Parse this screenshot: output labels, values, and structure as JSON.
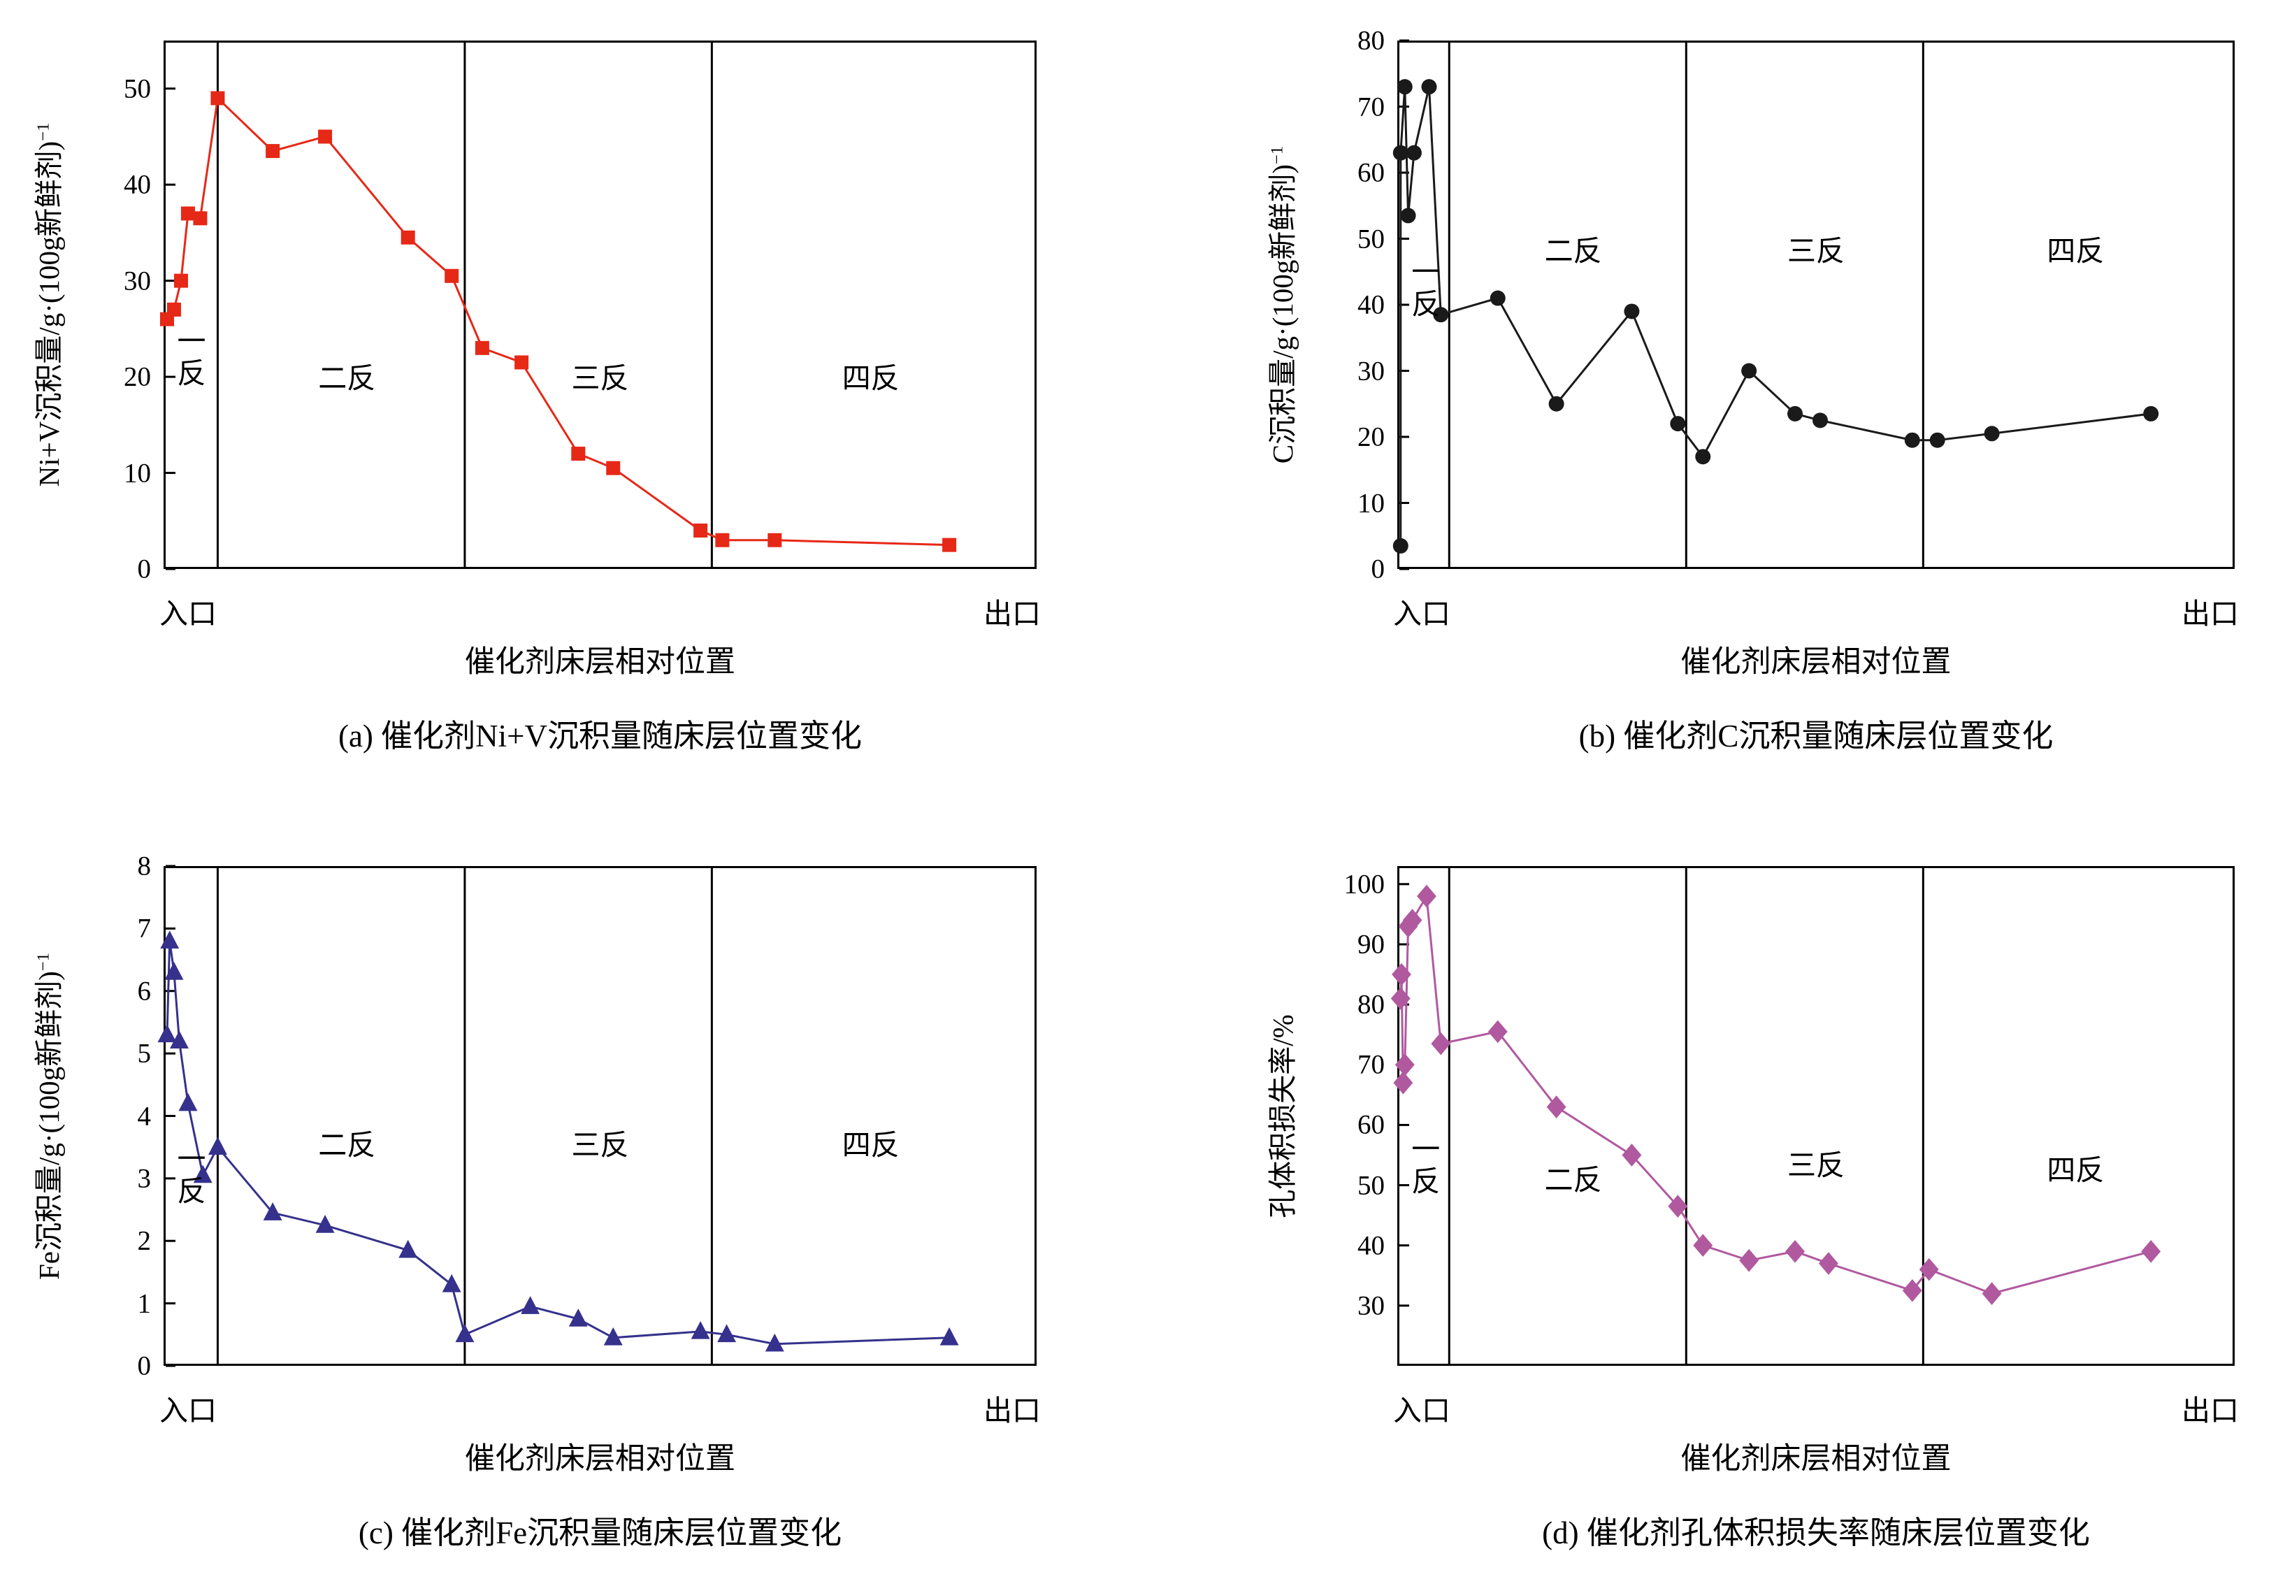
{
  "page": {
    "background": "#ffffff"
  },
  "chart_data": [
    {
      "id": "a",
      "type": "line",
      "caption": "(a) 催化剂Ni+V沉积量随床层位置变化",
      "ylabel": "Ni+V沉积量/g·(100g新鲜剂)",
      "ylabel_superscript": "−1",
      "xlabel": "催化剂床层相对位置",
      "x_left_label": "入口",
      "x_right_label": "出口",
      "line_color": "#e62817",
      "marker": "square",
      "marker_size": 20,
      "grid": false,
      "xlim": [
        0,
        1
      ],
      "ylim": [
        0,
        55
      ],
      "yticks": [
        0,
        10,
        20,
        30,
        40,
        50
      ],
      "reactor_dividers": [
        0.062,
        0.345,
        0.628
      ],
      "reactor_labels": [
        {
          "label": "一反",
          "x": 0.032,
          "y": 0.6,
          "stacked": true
        },
        {
          "label": "二反",
          "x": 0.21,
          "y": 0.64,
          "stacked": false
        },
        {
          "label": "三反",
          "x": 0.5,
          "y": 0.64,
          "stacked": false
        },
        {
          "label": "四反",
          "x": 0.81,
          "y": 0.64,
          "stacked": false
        }
      ],
      "x": [
        0.004,
        0.012,
        0.02,
        0.028,
        0.042,
        0.062,
        0.125,
        0.185,
        0.28,
        0.33,
        0.365,
        0.41,
        0.475,
        0.515,
        0.615,
        0.64,
        0.7,
        0.9
      ],
      "y": [
        26,
        27,
        30,
        37,
        36.5,
        49,
        43.5,
        45,
        34.5,
        30.5,
        23,
        21.5,
        12,
        10.5,
        4,
        3,
        3,
        2.5
      ]
    },
    {
      "id": "b",
      "type": "line",
      "caption": "(b) 催化剂C沉积量随床层位置变化",
      "ylabel": "C沉积量/g·(100g新鲜剂)",
      "ylabel_superscript": "−1",
      "xlabel": "催化剂床层相对位置",
      "x_left_label": "入口",
      "x_right_label": "出口",
      "line_color": "#1a1a1a",
      "marker": "circle",
      "marker_size": 22,
      "grid": false,
      "xlim": [
        0,
        1
      ],
      "ylim": [
        0,
        80
      ],
      "yticks": [
        0,
        10,
        20,
        30,
        40,
        50,
        60,
        70,
        80
      ],
      "reactor_dividers": [
        0.062,
        0.345,
        0.628
      ],
      "reactor_labels": [
        {
          "label": "一反",
          "x": 0.034,
          "y": 0.47,
          "stacked": true
        },
        {
          "label": "二反",
          "x": 0.21,
          "y": 0.4,
          "stacked": false
        },
        {
          "label": "三反",
          "x": 0.5,
          "y": 0.4,
          "stacked": false
        },
        {
          "label": "四反",
          "x": 0.81,
          "y": 0.4,
          "stacked": false
        }
      ],
      "x": [
        0.004,
        0.004,
        0.009,
        0.013,
        0.02,
        0.038,
        0.052,
        0.12,
        0.19,
        0.28,
        0.335,
        0.365,
        0.42,
        0.475,
        0.505,
        0.615,
        0.645,
        0.71,
        0.9
      ],
      "y": [
        3.5,
        63,
        73,
        53.5,
        63,
        73,
        38.5,
        41,
        25,
        39,
        22,
        17,
        30,
        23.5,
        22.5,
        19.5,
        19.5,
        20.5,
        23.5
      ]
    },
    {
      "id": "c",
      "type": "line",
      "caption": "(c) 催化剂Fe沉积量随床层位置变化",
      "ylabel": "Fe沉积量/g·(100g新鲜剂)",
      "ylabel_superscript": "−1",
      "xlabel": "催化剂床层相对位置",
      "x_left_label": "入口",
      "x_right_label": "出口",
      "line_color": "#35318c",
      "marker": "triangle",
      "marker_size": 24,
      "grid": false,
      "xlim": [
        0,
        1
      ],
      "ylim": [
        0,
        8
      ],
      "yticks": [
        0,
        1,
        2,
        3,
        4,
        5,
        6,
        7,
        8
      ],
      "reactor_dividers": [
        0.062,
        0.345,
        0.628
      ],
      "reactor_labels": [
        {
          "label": "一反",
          "x": 0.032,
          "y": 0.62,
          "stacked": true
        },
        {
          "label": "二反",
          "x": 0.21,
          "y": 0.56,
          "stacked": false
        },
        {
          "label": "三反",
          "x": 0.5,
          "y": 0.56,
          "stacked": false
        },
        {
          "label": "四反",
          "x": 0.81,
          "y": 0.56,
          "stacked": false
        }
      ],
      "x": [
        0.004,
        0.007,
        0.012,
        0.018,
        0.028,
        0.045,
        0.062,
        0.125,
        0.185,
        0.28,
        0.33,
        0.345,
        0.42,
        0.475,
        0.515,
        0.615,
        0.645,
        0.7,
        0.9
      ],
      "y": [
        5.3,
        6.8,
        6.3,
        5.2,
        4.2,
        3.05,
        3.5,
        2.45,
        2.25,
        1.85,
        1.3,
        0.5,
        0.95,
        0.75,
        0.45,
        0.55,
        0.5,
        0.35,
        0.45
      ]
    },
    {
      "id": "d",
      "type": "line",
      "caption": "(d) 催化剂孔体积损失率随床层位置变化",
      "ylabel": "孔体积损失率/%",
      "ylabel_superscript": "",
      "xlabel": "催化剂床层相对位置",
      "x_left_label": "入口",
      "x_right_label": "出口",
      "line_color": "#b0599f",
      "marker": "diamond",
      "marker_size": 24,
      "grid": false,
      "xlim": [
        0,
        1
      ],
      "ylim": [
        20,
        103
      ],
      "yticks": [
        30,
        40,
        50,
        60,
        70,
        80,
        90,
        100
      ],
      "reactor_dividers": [
        0.062,
        0.345,
        0.628
      ],
      "reactor_labels": [
        {
          "label": "一反",
          "x": 0.034,
          "y": 0.6,
          "stacked": true
        },
        {
          "label": "二反",
          "x": 0.21,
          "y": 0.63,
          "stacked": false
        },
        {
          "label": "三反",
          "x": 0.5,
          "y": 0.6,
          "stacked": false
        },
        {
          "label": "四反",
          "x": 0.81,
          "y": 0.61,
          "stacked": false
        }
      ],
      "x": [
        0.004,
        0.005,
        0.007,
        0.009,
        0.013,
        0.018,
        0.035,
        0.052,
        0.12,
        0.19,
        0.28,
        0.335,
        0.365,
        0.42,
        0.475,
        0.515,
        0.615,
        0.635,
        0.71,
        0.9
      ],
      "y": [
        81,
        85,
        67,
        70,
        93,
        94,
        98,
        73.5,
        75.5,
        63,
        55,
        46.5,
        40,
        37.5,
        39,
        37,
        32.5,
        36,
        32,
        39
      ]
    }
  ]
}
